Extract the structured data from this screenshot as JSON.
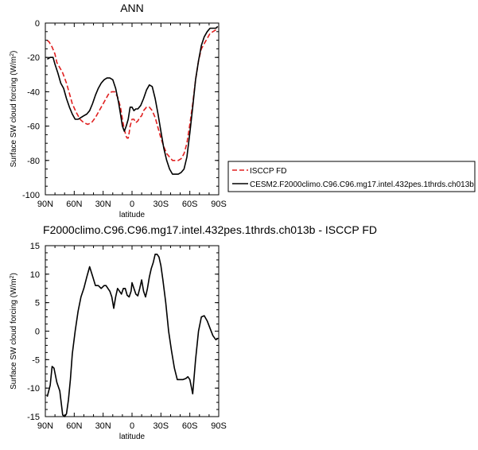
{
  "chart_data": [
    {
      "type": "line",
      "title": "ANN",
      "xlabel": "latitude",
      "ylabel": "Surface SW cloud forcing (W/m2)",
      "xlim": [
        90,
        -90
      ],
      "ylim": [
        -100,
        0
      ],
      "x_ticks": [
        {
          "v": 90,
          "label": "90N"
        },
        {
          "v": 60,
          "label": "60N"
        },
        {
          "v": 30,
          "label": "30N"
        },
        {
          "v": 0,
          "label": "0"
        },
        {
          "v": -30,
          "label": "30S"
        },
        {
          "v": -60,
          "label": "60S"
        },
        {
          "v": -90,
          "label": "90S"
        }
      ],
      "y_ticks": [
        0,
        -20,
        -40,
        -60,
        -80,
        -100
      ],
      "legend": "right",
      "series": [
        {
          "name": "ISCCP FD",
          "color": "#e02020",
          "dash": "dashed",
          "x": [
            88,
            86,
            83,
            80,
            78,
            75,
            72,
            68,
            65,
            62,
            58,
            54,
            50,
            46,
            42,
            38,
            34,
            30,
            27,
            24,
            21,
            18,
            15,
            12,
            10,
            8,
            6,
            5,
            4,
            3,
            2,
            0,
            -2,
            -4,
            -6,
            -8,
            -10,
            -12,
            -15,
            -18,
            -21,
            -24,
            -27,
            -30,
            -33,
            -36,
            -39,
            -42,
            -45,
            -48,
            -51,
            -54,
            -57,
            -60,
            -63,
            -66,
            -69,
            -72,
            -75,
            -78,
            -81,
            -84,
            -87,
            -89
          ],
          "y": [
            -10,
            -11,
            -14,
            -18,
            -23,
            -26,
            -29,
            -35,
            -41,
            -47,
            -52,
            -56,
            -58,
            -59,
            -58,
            -55,
            -51,
            -47,
            -44,
            -41,
            -40,
            -40,
            -43,
            -49,
            -56,
            -62,
            -66,
            -67,
            -67,
            -64,
            -60,
            -56,
            -56,
            -58,
            -57,
            -55,
            -54,
            -51,
            -49,
            -49,
            -51,
            -55,
            -61,
            -67,
            -72,
            -76,
            -78,
            -80,
            -80,
            -80,
            -79,
            -76,
            -70,
            -59,
            -47,
            -33,
            -22,
            -15,
            -12,
            -9,
            -6,
            -5,
            -4,
            -3
          ]
        },
        {
          "name": "CESM2.F2000climo.C96.C96.mg17.intel.432pes.1thrds.ch013b",
          "color": "#000000",
          "dash": "solid",
          "x": [
            88,
            85,
            82,
            80,
            77,
            74,
            71,
            68,
            65,
            62,
            59,
            56,
            53,
            50,
            47,
            44,
            41,
            38,
            35,
            32,
            29,
            26,
            23,
            20,
            17,
            14,
            12,
            10,
            8,
            6,
            4,
            2,
            0,
            -2,
            -4,
            -6,
            -9,
            -12,
            -15,
            -18,
            -21,
            -24,
            -27,
            -30,
            -33,
            -36,
            -39,
            -42,
            -45,
            -48,
            -51,
            -54,
            -57,
            -60,
            -63,
            -66,
            -69,
            -72,
            -75,
            -78,
            -81,
            -84,
            -87,
            -89
          ],
          "y": [
            -21,
            -20,
            -20,
            -24,
            -29,
            -35,
            -38,
            -44,
            -49,
            -53,
            -56,
            -56,
            -55,
            -54,
            -53,
            -51,
            -47,
            -42,
            -38,
            -35,
            -33,
            -32,
            -32,
            -33,
            -38,
            -46,
            -53,
            -60,
            -63,
            -60,
            -56,
            -49,
            -49,
            -51,
            -50,
            -50,
            -48,
            -44,
            -39,
            -36,
            -37,
            -44,
            -53,
            -63,
            -73,
            -80,
            -85,
            -88,
            -88,
            -88,
            -87,
            -85,
            -78,
            -64,
            -49,
            -33,
            -22,
            -13,
            -8,
            -5,
            -3,
            -3,
            -3,
            -2
          ]
        }
      ]
    },
    {
      "type": "line",
      "title": "F2000climo.C96.C96.mg17.intel.432pes.1thrds.ch013b - ISCCP FD",
      "xlabel": "latitude",
      "ylabel": "Surface SW cloud forcing (W/m2)",
      "xlim": [
        90,
        -90
      ],
      "ylim": [
        -15,
        15
      ],
      "x_ticks": [
        {
          "v": 90,
          "label": "90N"
        },
        {
          "v": 60,
          "label": "60N"
        },
        {
          "v": 30,
          "label": "30N"
        },
        {
          "v": 0,
          "label": "0"
        },
        {
          "v": -30,
          "label": "30S"
        },
        {
          "v": -60,
          "label": "60S"
        },
        {
          "v": -90,
          "label": "90S"
        }
      ],
      "y_ticks": [
        15,
        10,
        5,
        0,
        -5,
        -10,
        -15
      ],
      "series": [
        {
          "color": "#000000",
          "dash": "solid",
          "x": [
            88,
            85,
            83,
            81,
            78,
            75,
            72,
            70,
            68,
            66,
            64,
            62,
            59,
            56,
            53,
            50,
            47,
            44,
            41,
            38,
            35,
            32,
            29,
            27,
            25,
            23,
            21,
            19,
            17,
            15,
            13,
            11,
            9,
            7,
            5,
            3,
            1,
            0,
            -2,
            -4,
            -6,
            -8,
            -10,
            -12,
            -14,
            -16,
            -18,
            -20,
            -22,
            -24,
            -26,
            -28,
            -30,
            -32,
            -35,
            -38,
            -41,
            -44,
            -47,
            -50,
            -53,
            -56,
            -58,
            -60,
            -63,
            -66,
            -69,
            -72,
            -75,
            -78,
            -81,
            -84,
            -87,
            -89
          ],
          "y": [
            -11.5,
            -9.5,
            -6.2,
            -6.5,
            -9,
            -10.5,
            -14.7,
            -15,
            -14.5,
            -12,
            -8.5,
            -4,
            0,
            3.5,
            6,
            7.5,
            9.5,
            11.3,
            9.7,
            8,
            8,
            7.5,
            8,
            8,
            7.5,
            7,
            6,
            4,
            6,
            7.5,
            7,
            6.5,
            7.5,
            7.5,
            6.3,
            6,
            7,
            8.5,
            7.5,
            6.5,
            6.2,
            7.5,
            9,
            7,
            6,
            7.5,
            9.5,
            11,
            12,
            13.5,
            13.5,
            13,
            11.5,
            9,
            5,
            0,
            -3.5,
            -6.5,
            -8.5,
            -8.5,
            -8.5,
            -8.3,
            -8,
            -8.5,
            -11,
            -5,
            0,
            2.5,
            2.7,
            1.8,
            0.5,
            -0.8,
            -1.5,
            -1.3
          ]
        }
      ]
    }
  ]
}
